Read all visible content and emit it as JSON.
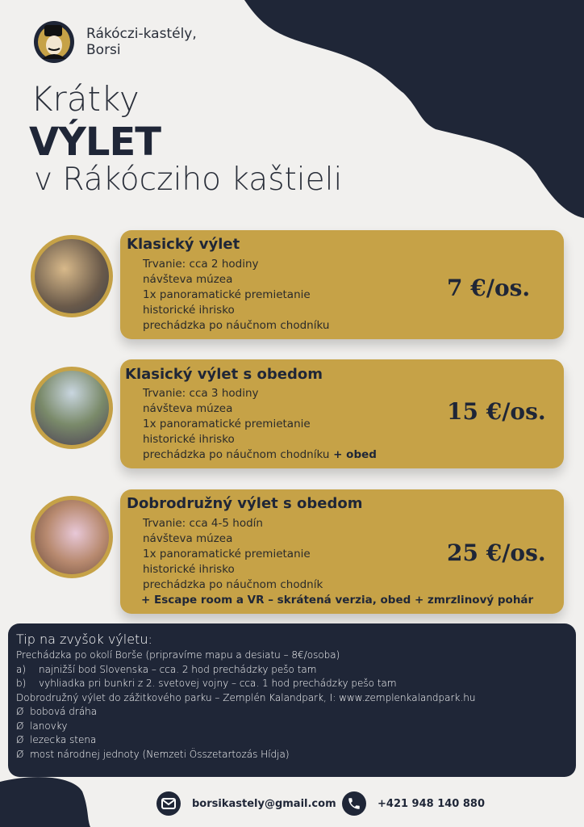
{
  "brand": {
    "line1": "Rákóczi-kastély,",
    "line2": "Borsi"
  },
  "title": {
    "line1": "Krátky",
    "line2": "VÝLET",
    "line3": "v Rákócziho kaštieli"
  },
  "colors": {
    "gold": "#c6a247",
    "navy": "#1f2637",
    "background": "#f1f0ee"
  },
  "offers": [
    {
      "title": "Klasický výlet",
      "items": [
        "Trvanie: cca 2 hodiny",
        "návšteva múzea",
        "1x panoramatické premietanie",
        "historické ihrisko",
        "prechádzka po náučnom chodníku"
      ],
      "extra": "",
      "price": "7 €/os."
    },
    {
      "title": "Klasický výlet s obedom",
      "items": [
        "Trvanie: cca 3 hodiny",
        "návšteva múzea",
        "1x panoramatické premietanie",
        "historické ihrisko",
        "prechádzka po náučnom chodníku"
      ],
      "extra": " + obed",
      "price": "15 €/os."
    },
    {
      "title": "Dobrodružný výlet s obedom",
      "items": [
        "Trvanie: cca 4-5 hodín",
        "návšteva múzea",
        "1x panoramatické premietanie",
        "historické ihrisko",
        "prechádzka po náučnom chodník"
      ],
      "extra_line": "+ Escape room a VR – skrátená verzia, obed + zmrzlinový pohár",
      "price": "25 €/os."
    }
  ],
  "tip": {
    "heading": "Tip na zvyšok výletu:",
    "walk": "Prechádzka po okolí Borše (pripravíme mapu a desiatu – 8€/osoba)",
    "a_marker": "a)",
    "a": "najnižší bod Slovenska – cca. 2 hod prechádzky pešo tam",
    "b_marker": "b)",
    "b": "vyhliadka pri bunkri z 2. svetovej vojny – cca. 1 hod prechádzky pešo tam",
    "park": "Dobrodružný výlet do zážitkového parku – Zemplén Kalandpark, I: ",
    "park_link": "www.zemplenkalandpark.hu",
    "bullet": "Ø",
    "bullets": [
      "bobová dráha",
      "lanovky",
      "lezecka stena",
      "most národnej jednoty (Nemzeti Összetartozás Hídja)"
    ]
  },
  "contact": {
    "email": "borsikastely@gmail.com",
    "phone": "+421 948 140 880",
    "email_icon": "envelope-icon",
    "phone_icon": "phone-icon"
  }
}
